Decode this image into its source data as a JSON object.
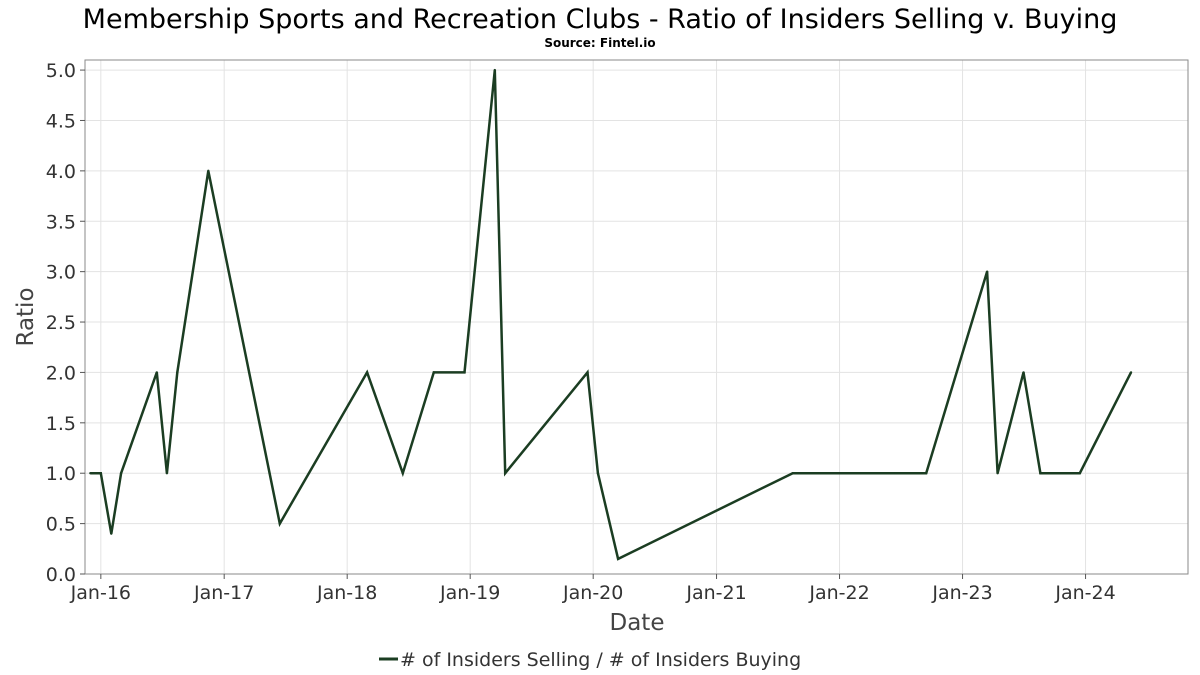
{
  "chart_data": {
    "type": "line",
    "title": "Membership Sports and Recreation Clubs - Ratio of Insiders Selling v. Buying",
    "subtitle": "Source: Fintel.io",
    "xlabel": "Date",
    "ylabel": "Ratio",
    "ylim": [
      0,
      5.1
    ],
    "xlim": [
      "2015-11-15",
      "2024-10-31"
    ],
    "x_ticks": [
      {
        "date": "2016-01-01",
        "label": "Jan-16"
      },
      {
        "date": "2017-01-01",
        "label": "Jan-17"
      },
      {
        "date": "2018-01-01",
        "label": "Jan-18"
      },
      {
        "date": "2019-01-01",
        "label": "Jan-19"
      },
      {
        "date": "2020-01-01",
        "label": "Jan-20"
      },
      {
        "date": "2021-01-01",
        "label": "Jan-21"
      },
      {
        "date": "2022-01-01",
        "label": "Jan-22"
      },
      {
        "date": "2023-01-01",
        "label": "Jan-23"
      },
      {
        "date": "2024-01-01",
        "label": "Jan-24"
      }
    ],
    "y_ticks": [
      {
        "value": 0.0,
        "label": "0.0"
      },
      {
        "value": 0.5,
        "label": "0.5"
      },
      {
        "value": 1.0,
        "label": "1.0"
      },
      {
        "value": 1.5,
        "label": "1.5"
      },
      {
        "value": 2.0,
        "label": "2.0"
      },
      {
        "value": 2.5,
        "label": "2.5"
      },
      {
        "value": 3.0,
        "label": "3.0"
      },
      {
        "value": 3.5,
        "label": "3.5"
      },
      {
        "value": 4.0,
        "label": "4.0"
      },
      {
        "value": 4.5,
        "label": "4.5"
      },
      {
        "value": 5.0,
        "label": "5.0"
      }
    ],
    "grid": true,
    "legend_position": "bottom-center",
    "series": [
      {
        "name": "# of Insiders Selling / # of Insiders Buying",
        "color": "#1b3d22",
        "points": [
          {
            "x": "2015-12-01",
            "y": 1.0
          },
          {
            "x": "2016-01-01",
            "y": 1.0
          },
          {
            "x": "2016-02-01",
            "y": 0.4
          },
          {
            "x": "2016-03-01",
            "y": 1.0
          },
          {
            "x": "2016-06-15",
            "y": 2.0
          },
          {
            "x": "2016-07-15",
            "y": 1.0
          },
          {
            "x": "2016-08-15",
            "y": 2.0
          },
          {
            "x": "2016-11-15",
            "y": 4.0
          },
          {
            "x": "2017-06-15",
            "y": 0.5
          },
          {
            "x": "2018-03-01",
            "y": 2.0
          },
          {
            "x": "2018-06-15",
            "y": 1.0
          },
          {
            "x": "2018-09-15",
            "y": 2.0
          },
          {
            "x": "2018-12-15",
            "y": 2.0
          },
          {
            "x": "2019-03-15",
            "y": 5.0
          },
          {
            "x": "2019-04-15",
            "y": 1.0
          },
          {
            "x": "2019-12-15",
            "y": 2.0
          },
          {
            "x": "2020-01-15",
            "y": 1.0
          },
          {
            "x": "2020-03-15",
            "y": 0.15
          },
          {
            "x": "2021-08-15",
            "y": 1.0
          },
          {
            "x": "2022-06-15",
            "y": 1.0
          },
          {
            "x": "2022-09-15",
            "y": 1.0
          },
          {
            "x": "2023-03-15",
            "y": 3.0
          },
          {
            "x": "2023-04-15",
            "y": 1.0
          },
          {
            "x": "2023-07-01",
            "y": 2.0
          },
          {
            "x": "2023-08-20",
            "y": 1.0
          },
          {
            "x": "2023-12-15",
            "y": 1.0
          },
          {
            "x": "2024-05-15",
            "y": 2.0
          }
        ]
      }
    ]
  }
}
